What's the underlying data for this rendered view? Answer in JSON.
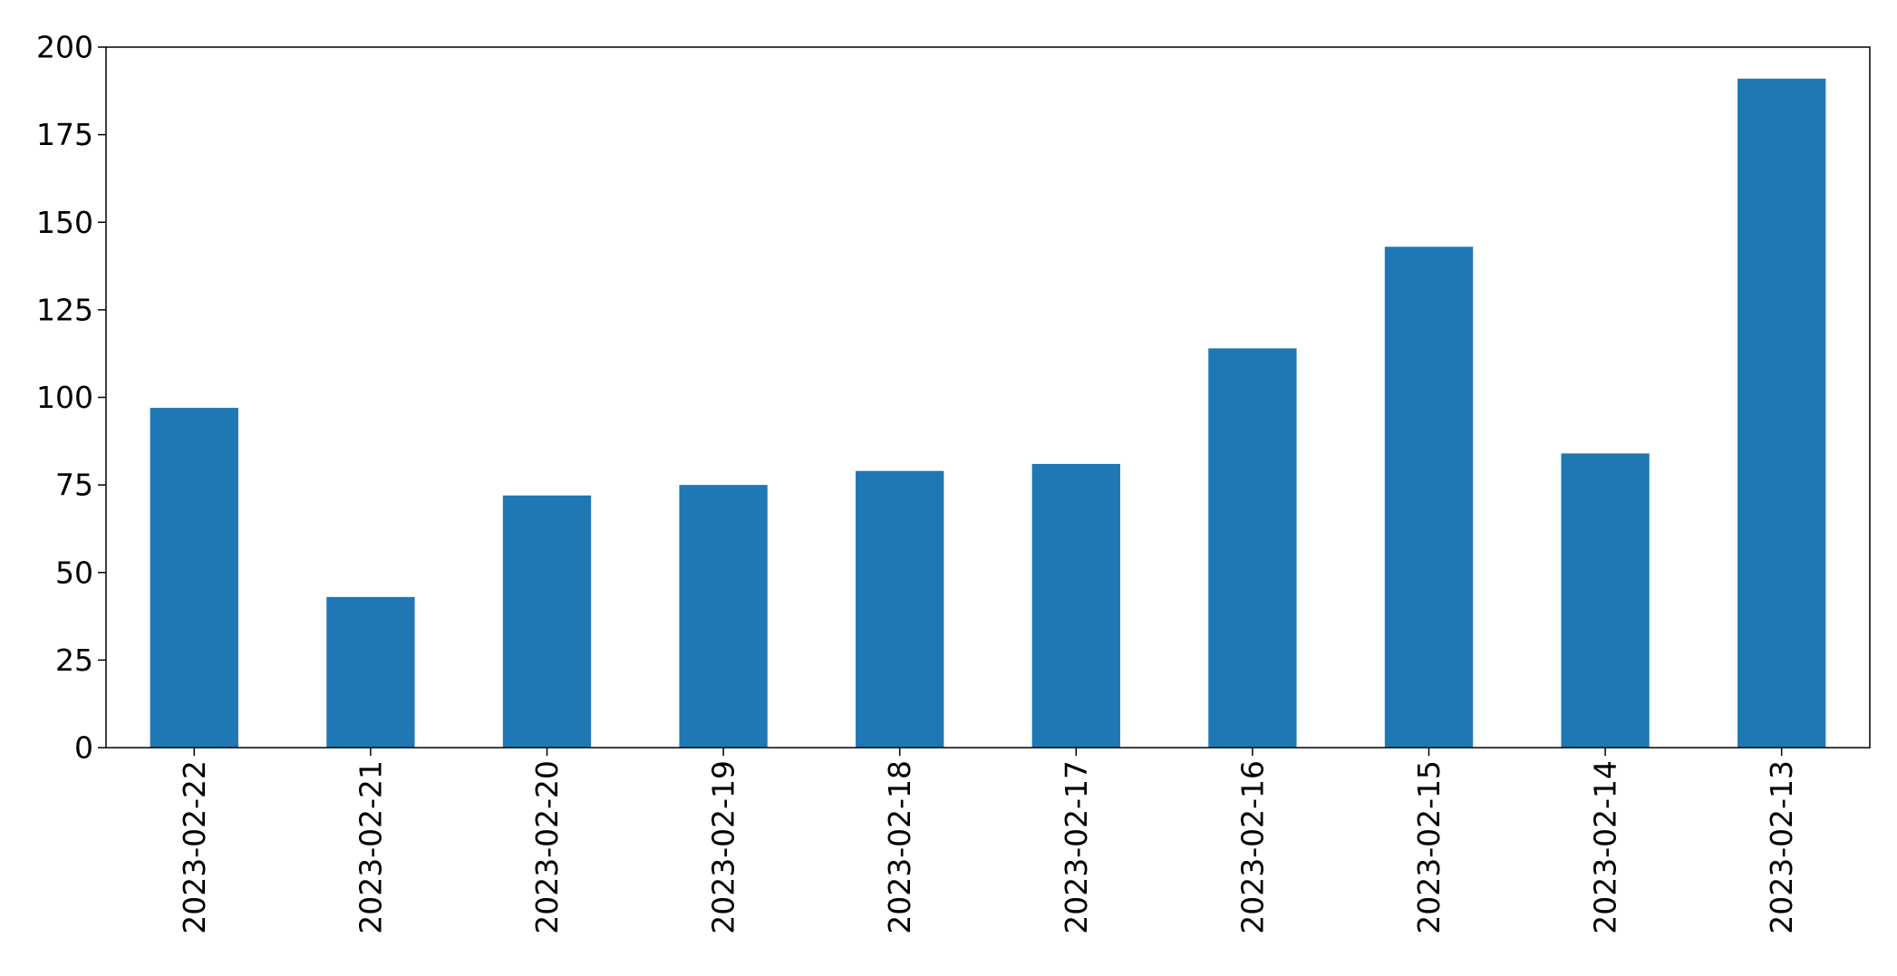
{
  "chart_data": {
    "type": "bar",
    "title": "",
    "xlabel": "",
    "ylabel": "",
    "categories": [
      "2023-02-22",
      "2023-02-21",
      "2023-02-20",
      "2023-02-19",
      "2023-02-18",
      "2023-02-17",
      "2023-02-16",
      "2023-02-15",
      "2023-02-14",
      "2023-02-13"
    ],
    "values": [
      97,
      43,
      72,
      75,
      79,
      81,
      114,
      143,
      84,
      191
    ],
    "ylim": [
      0,
      200
    ],
    "yticks": [
      0,
      25,
      50,
      75,
      100,
      125,
      150,
      175,
      200
    ],
    "grid": false,
    "legend": "none",
    "bar_color": "#1f77b4"
  }
}
